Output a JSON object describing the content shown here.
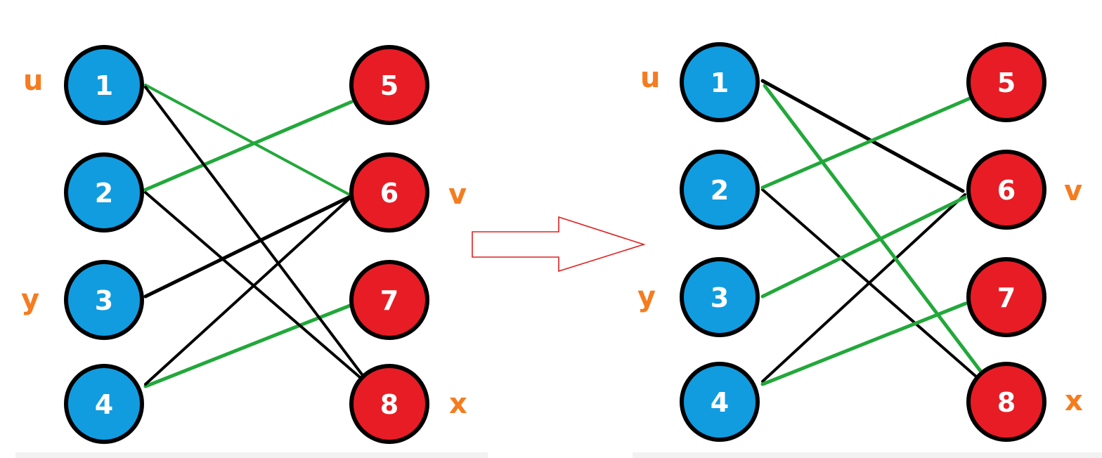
{
  "colors": {
    "left_node": "#119ce0",
    "right_node": "#e81c24",
    "node_outline": "#000000",
    "matched_edge": "#22a83a",
    "unmatched_edge": "#000000",
    "side_label": "#f57c1f",
    "arrow": "#e02020"
  },
  "panels": [
    {
      "name": "before",
      "nodes": [
        {
          "id": "1",
          "label": "1",
          "side": "left"
        },
        {
          "id": "2",
          "label": "2",
          "side": "left"
        },
        {
          "id": "3",
          "label": "3",
          "side": "left"
        },
        {
          "id": "4",
          "label": "4",
          "side": "left"
        },
        {
          "id": "5",
          "label": "5",
          "side": "right"
        },
        {
          "id": "6",
          "label": "6",
          "side": "right"
        },
        {
          "id": "7",
          "label": "7",
          "side": "right"
        },
        {
          "id": "8",
          "label": "8",
          "side": "right"
        }
      ],
      "side_labels": [
        {
          "text": "u",
          "node": "1"
        },
        {
          "text": "y",
          "node": "3"
        },
        {
          "text": "v",
          "node": "6"
        },
        {
          "text": "x",
          "node": "8"
        }
      ],
      "edges": [
        {
          "from": "1",
          "to": "6",
          "matched": true
        },
        {
          "from": "2",
          "to": "5",
          "matched": true
        },
        {
          "from": "4",
          "to": "7",
          "matched": true
        },
        {
          "from": "1",
          "to": "8",
          "matched": false
        },
        {
          "from": "2",
          "to": "8",
          "matched": false
        },
        {
          "from": "3",
          "to": "6",
          "matched": false
        },
        {
          "from": "4",
          "to": "6",
          "matched": false
        }
      ]
    },
    {
      "name": "after",
      "nodes": [
        {
          "id": "1",
          "label": "1",
          "side": "left"
        },
        {
          "id": "2",
          "label": "2",
          "side": "left"
        },
        {
          "id": "3",
          "label": "3",
          "side": "left"
        },
        {
          "id": "4",
          "label": "4",
          "side": "left"
        },
        {
          "id": "5",
          "label": "5",
          "side": "right"
        },
        {
          "id": "6",
          "label": "6",
          "side": "right"
        },
        {
          "id": "7",
          "label": "7",
          "side": "right"
        },
        {
          "id": "8",
          "label": "8",
          "side": "right"
        }
      ],
      "side_labels": [
        {
          "text": "u",
          "node": "1"
        },
        {
          "text": "y",
          "node": "3"
        },
        {
          "text": "v",
          "node": "6"
        },
        {
          "text": "x",
          "node": "8"
        }
      ],
      "edges": [
        {
          "from": "1",
          "to": "6",
          "matched": false
        },
        {
          "from": "2",
          "to": "8",
          "matched": false
        },
        {
          "from": "4",
          "to": "6",
          "matched": false
        },
        {
          "from": "2",
          "to": "5",
          "matched": true
        },
        {
          "from": "3",
          "to": "6",
          "matched": true
        },
        {
          "from": "4",
          "to": "7",
          "matched": true
        },
        {
          "from": "1",
          "to": "8",
          "matched": true
        }
      ]
    }
  ],
  "transition": {
    "icon": "right-arrow-icon"
  }
}
